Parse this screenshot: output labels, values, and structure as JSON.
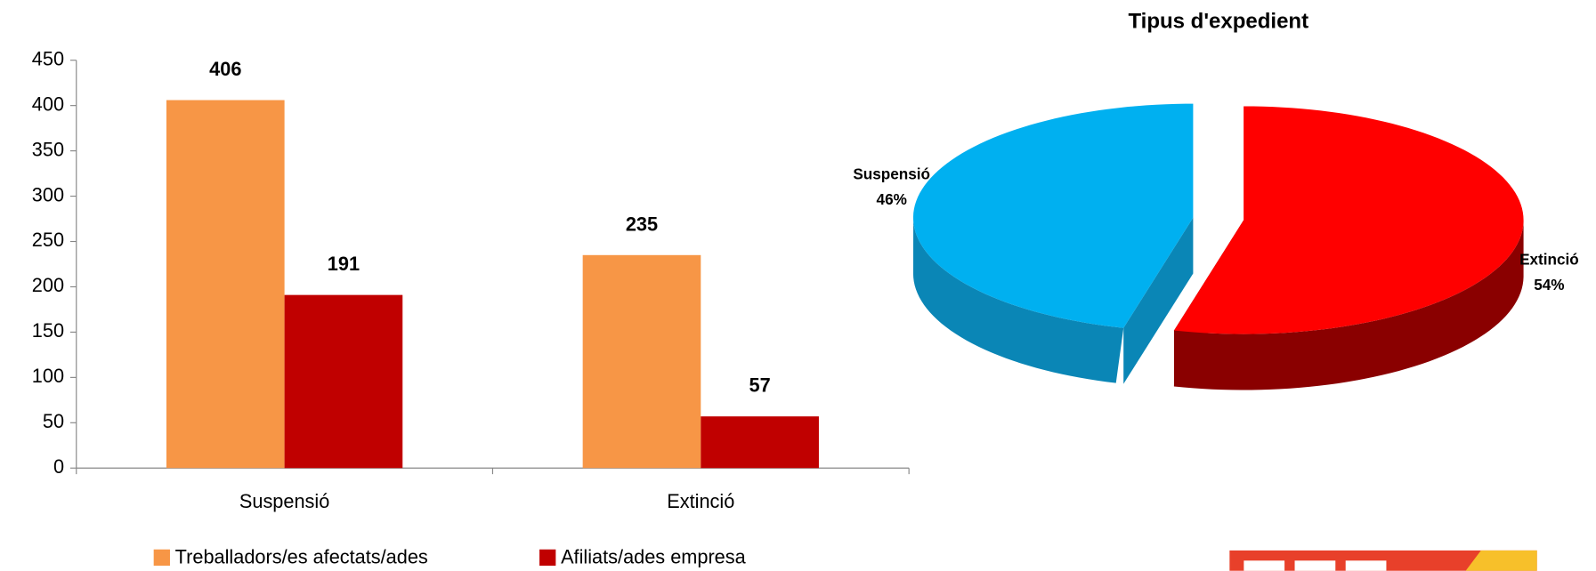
{
  "chart_data": [
    {
      "type": "bar",
      "categories": [
        "Suspensió",
        "Extinció"
      ],
      "series": [
        {
          "name": "Treballadors/es afectats/ades",
          "color": "#f79646",
          "values": [
            406,
            235
          ]
        },
        {
          "name": "Afiliats/ades empresa",
          "color": "#c00000",
          "values": [
            191,
            57
          ]
        }
      ],
      "ylim": [
        0,
        450
      ],
      "yticks": [
        0,
        50,
        100,
        150,
        200,
        250,
        300,
        350,
        400,
        450
      ],
      "legend": "bottom"
    },
    {
      "type": "pie",
      "title": "Tipus d'expedient",
      "categories": [
        "Suspensió",
        "Extinció"
      ],
      "values": [
        46,
        54
      ],
      "value_labels": [
        "46%",
        "54%"
      ],
      "colors": [
        "#00b0f0",
        "#ff0000"
      ]
    }
  ]
}
